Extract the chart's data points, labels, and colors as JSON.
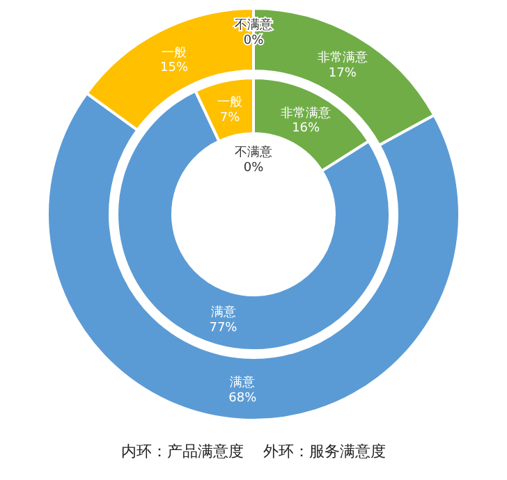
{
  "chart_data": {
    "type": "donut",
    "categories": [
      "非常满意",
      "满意",
      "一般",
      "不满意"
    ],
    "colors": [
      "#70ad47",
      "#5b9bd5",
      "#ffc000",
      "#a5a5a5"
    ],
    "series": [
      {
        "values": [
          16,
          77,
          7,
          0
        ],
        "value_labels": [
          "16%",
          "77%",
          "7%",
          "0%"
        ]
      },
      {
        "values": [
          17,
          68,
          15,
          0
        ],
        "value_labels": [
          "17%",
          "68%",
          "15%",
          "0%"
        ]
      }
    ],
    "annotations": [
      "内环：产品满意度    外环：服务满意度"
    ]
  }
}
